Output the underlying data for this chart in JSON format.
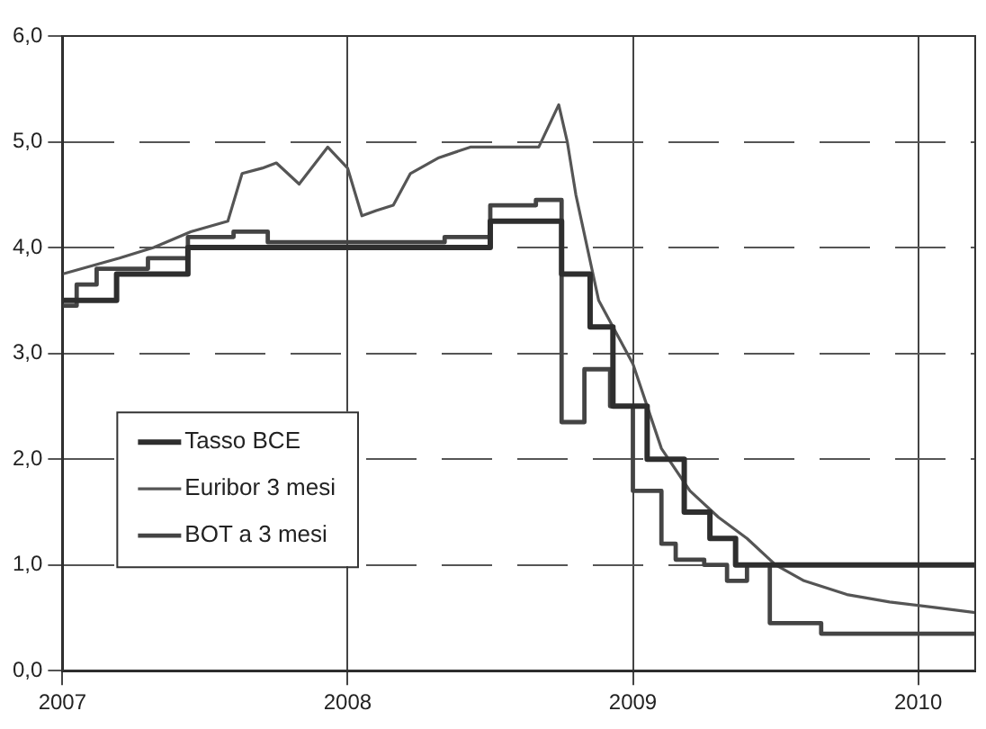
{
  "chart_data": {
    "type": "line",
    "xlim": [
      2007,
      2010.2
    ],
    "xticks": [
      2007,
      2008,
      2009,
      2010
    ],
    "ylim": [
      0,
      6
    ],
    "yticks": [
      {
        "value": 0,
        "label": "0,0"
      },
      {
        "value": 1,
        "label": "1,0"
      },
      {
        "value": 2,
        "label": "2,0"
      },
      {
        "value": 3,
        "label": "3,0"
      },
      {
        "value": 4,
        "label": "4,0"
      },
      {
        "value": 5,
        "label": "5,0"
      },
      {
        "value": 6,
        "label": "6,0"
      }
    ],
    "grid": true,
    "legend": "left",
    "marker": "none",
    "series": [
      {
        "name": "Tasso BCE",
        "type": "step",
        "color": "#2e2e2e",
        "x": [
          2007,
          2007.19,
          2007.44,
          2008.5,
          2008.75,
          2008.85,
          2008.93,
          2009.05,
          2009.18,
          2009.27,
          2009.36,
          2010.2
        ],
        "values": [
          3.5,
          3.75,
          4.0,
          4.25,
          3.75,
          3.25,
          2.5,
          2.0,
          1.5,
          1.25,
          1.0,
          1.0
        ]
      },
      {
        "name": "Euribor 3 mesi",
        "color": "#555555",
        "x": [
          2007,
          2007.2,
          2007.32,
          2007.45,
          2007.58,
          2007.63,
          2007.7,
          2007.75,
          2007.83,
          2007.93,
          2008.0,
          2008.05,
          2008.1,
          2008.16,
          2008.22,
          2008.32,
          2008.43,
          2008.55,
          2008.67,
          2008.74,
          2008.77,
          2008.8,
          2008.88,
          2009.0,
          2009.1,
          2009.2,
          2009.3,
          2009.4,
          2009.5,
          2009.6,
          2009.75,
          2009.9,
          2010.05,
          2010.2
        ],
        "values": [
          3.75,
          3.9,
          4.0,
          4.15,
          4.25,
          4.7,
          4.75,
          4.8,
          4.6,
          4.95,
          4.75,
          4.3,
          4.35,
          4.4,
          4.7,
          4.85,
          4.95,
          4.95,
          4.95,
          5.35,
          5.0,
          4.5,
          3.5,
          2.9,
          2.1,
          1.7,
          1.45,
          1.25,
          1.0,
          0.85,
          0.72,
          0.65,
          0.6,
          0.55
        ]
      },
      {
        "name": "BOT a 3 mesi",
        "type": "step",
        "color": "#444444",
        "x": [
          2007,
          2007.05,
          2007.12,
          2007.3,
          2007.44,
          2007.6,
          2007.72,
          2008.34,
          2008.5,
          2008.66,
          2008.75,
          2008.83,
          2008.92,
          2009.0,
          2009.1,
          2009.15,
          2009.25,
          2009.33,
          2009.4,
          2009.48,
          2009.66,
          2010.2
        ],
        "values": [
          3.45,
          3.65,
          3.8,
          3.9,
          4.1,
          4.15,
          4.05,
          4.1,
          4.4,
          4.45,
          2.35,
          2.85,
          2.5,
          1.7,
          1.2,
          1.05,
          1.0,
          0.85,
          1.0,
          0.45,
          0.35,
          0.35
        ]
      }
    ]
  }
}
